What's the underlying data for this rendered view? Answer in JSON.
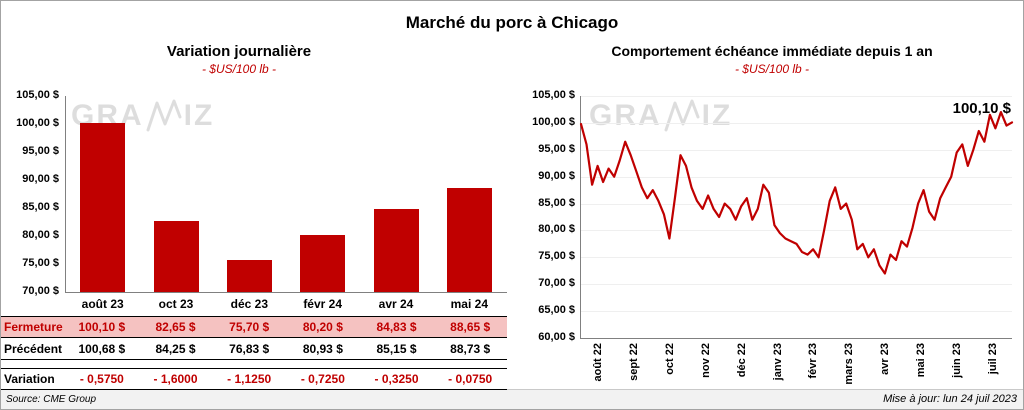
{
  "header": {
    "title": "Marché du porc à Chicago"
  },
  "watermark": {
    "left": "GRA",
    "right": "IZ"
  },
  "colors": {
    "accent": "#C00000",
    "highlight_row_bg": "#F5C2C1",
    "axis": "#808080",
    "grid": "#EFEFEF"
  },
  "chart_data": [
    {
      "type": "bar",
      "title": "Variation journalière",
      "subtitle": "- $US/100 lb -",
      "categories": [
        "août 23",
        "oct 23",
        "déc 23",
        "févr 24",
        "avr 24",
        "mai 24"
      ],
      "values": [
        100.1,
        82.65,
        75.7,
        80.2,
        84.83,
        88.65
      ],
      "ylim": [
        70,
        105
      ],
      "yticks": [
        "105,00 $",
        "100,00 $",
        "95,00 $",
        "90,00 $",
        "85,00 $",
        "80,00 $",
        "75,00 $",
        "70,00 $"
      ],
      "bar_color": "#C00000"
    },
    {
      "type": "line",
      "title": "Comportement échéance immédiate depuis 1 an",
      "subtitle": "- $US/100 lb -",
      "x_labels": [
        "août 22",
        "sept 22",
        "oct 22",
        "nov 22",
        "déc 22",
        "janv 23",
        "févr 23",
        "mars 23",
        "avr 23",
        "mai 23",
        "juin 23",
        "juil 23"
      ],
      "values": [
        99.8,
        96.0,
        88.5,
        92.0,
        89.0,
        91.5,
        90.0,
        93.0,
        96.5,
        94.0,
        91.0,
        88.0,
        86.0,
        87.5,
        85.5,
        83.0,
        78.5,
        86.0,
        94.0,
        92.0,
        88.0,
        85.5,
        84.0,
        86.5,
        84.0,
        82.5,
        85.0,
        84.0,
        82.0,
        84.5,
        86.0,
        82.0,
        84.0,
        88.5,
        87.0,
        81.0,
        79.5,
        78.5,
        78.0,
        77.5,
        76.0,
        75.5,
        76.5,
        75.0,
        80.0,
        85.5,
        88.0,
        84.0,
        85.0,
        82.0,
        76.5,
        77.5,
        75.0,
        76.5,
        73.5,
        72.0,
        75.5,
        74.5,
        78.0,
        77.0,
        80.5,
        85.0,
        87.5,
        83.5,
        82.0,
        86.0,
        88.0,
        90.0,
        94.5,
        96.0,
        92.0,
        95.0,
        98.5,
        96.5,
        101.5,
        99.0,
        102.0,
        99.5,
        100.1
      ],
      "ylim": [
        60,
        105
      ],
      "yticks": [
        "105,00 $",
        "100,00 $",
        "95,00 $",
        "90,00 $",
        "85,00 $",
        "80,00 $",
        "75,00 $",
        "70,00 $",
        "65,00 $",
        "60,00 $"
      ],
      "annotation": "100,10 $",
      "line_color": "#C00000"
    }
  ],
  "table": {
    "rows": [
      {
        "label": "Fermeture",
        "style": "highlight",
        "values": [
          "100,10 $",
          "82,65 $",
          "75,70 $",
          "80,20 $",
          "84,83 $",
          "88,65 $"
        ]
      },
      {
        "label": "Précédent",
        "style": "normal",
        "values": [
          "100,68 $",
          "84,25 $",
          "76,83 $",
          "80,93 $",
          "85,15 $",
          "88,73 $"
        ]
      },
      {
        "label": "Variation",
        "style": "variation",
        "values": [
          "- 0,5750",
          "- 1,6000",
          "- 1,1250",
          "- 0,7250",
          "- 0,3250",
          "- 0,0750"
        ]
      }
    ]
  },
  "footer": {
    "source": "Source: CME Group",
    "updated": "Mise à jour: lun 24 juil 2023"
  }
}
